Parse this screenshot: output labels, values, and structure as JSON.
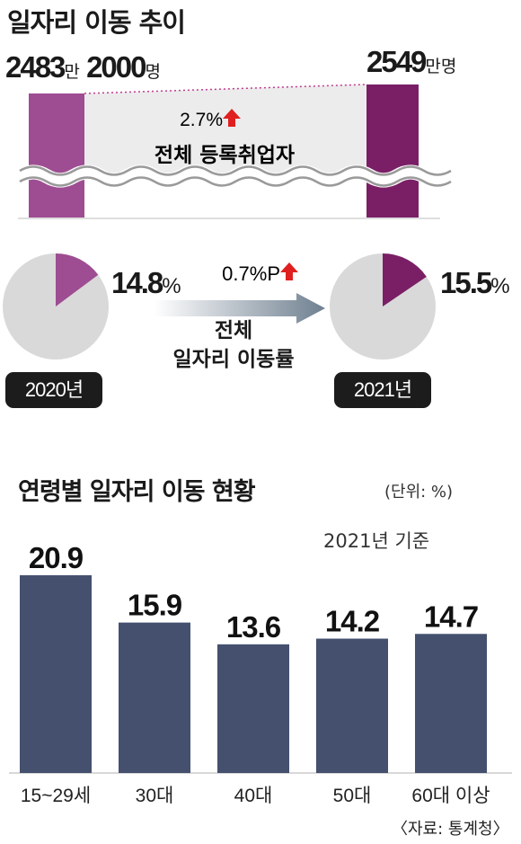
{
  "top": {
    "title": "일자리 이동 추이",
    "left_value": "2483",
    "left_unit": "만",
    "left_value2": "2000",
    "left_unit2": "명",
    "right_value": "2549",
    "right_unit": "만",
    "right_unit2": "명",
    "change": "2.7%",
    "label": "전체 등록취업자"
  },
  "mobility": {
    "label_line1": "전체",
    "label_line2": "일자리 이동률",
    "change": "0.7%P",
    "years": [
      {
        "year": "2020년",
        "value": "14.8",
        "pct": 14.8,
        "unit": "%"
      },
      {
        "year": "2021년",
        "value": "15.5",
        "pct": 15.5,
        "unit": "%"
      }
    ]
  },
  "colors": {
    "purple_2020": "#9e4d92",
    "purple_2021": "#7a1f66",
    "pie_bg": "#d9d9d9",
    "bar": "#44506e",
    "arrow_red": "#e02020"
  },
  "chart_data": {
    "type": "bar",
    "title": "연령별 일자리 이동 현황",
    "unit_note": "(단위: %)",
    "subtitle": "2021년 기준",
    "categories": [
      "15~29세",
      "30대",
      "40대",
      "50대",
      "60대 이상"
    ],
    "values": [
      20.9,
      15.9,
      13.6,
      14.2,
      14.7
    ],
    "value_labels": [
      "20.9",
      "15.9",
      "13.6",
      "14.2",
      "14.7"
    ],
    "ylim": [
      0,
      20.9
    ],
    "grid": false,
    "source": "〈자료: 통계청〉"
  }
}
